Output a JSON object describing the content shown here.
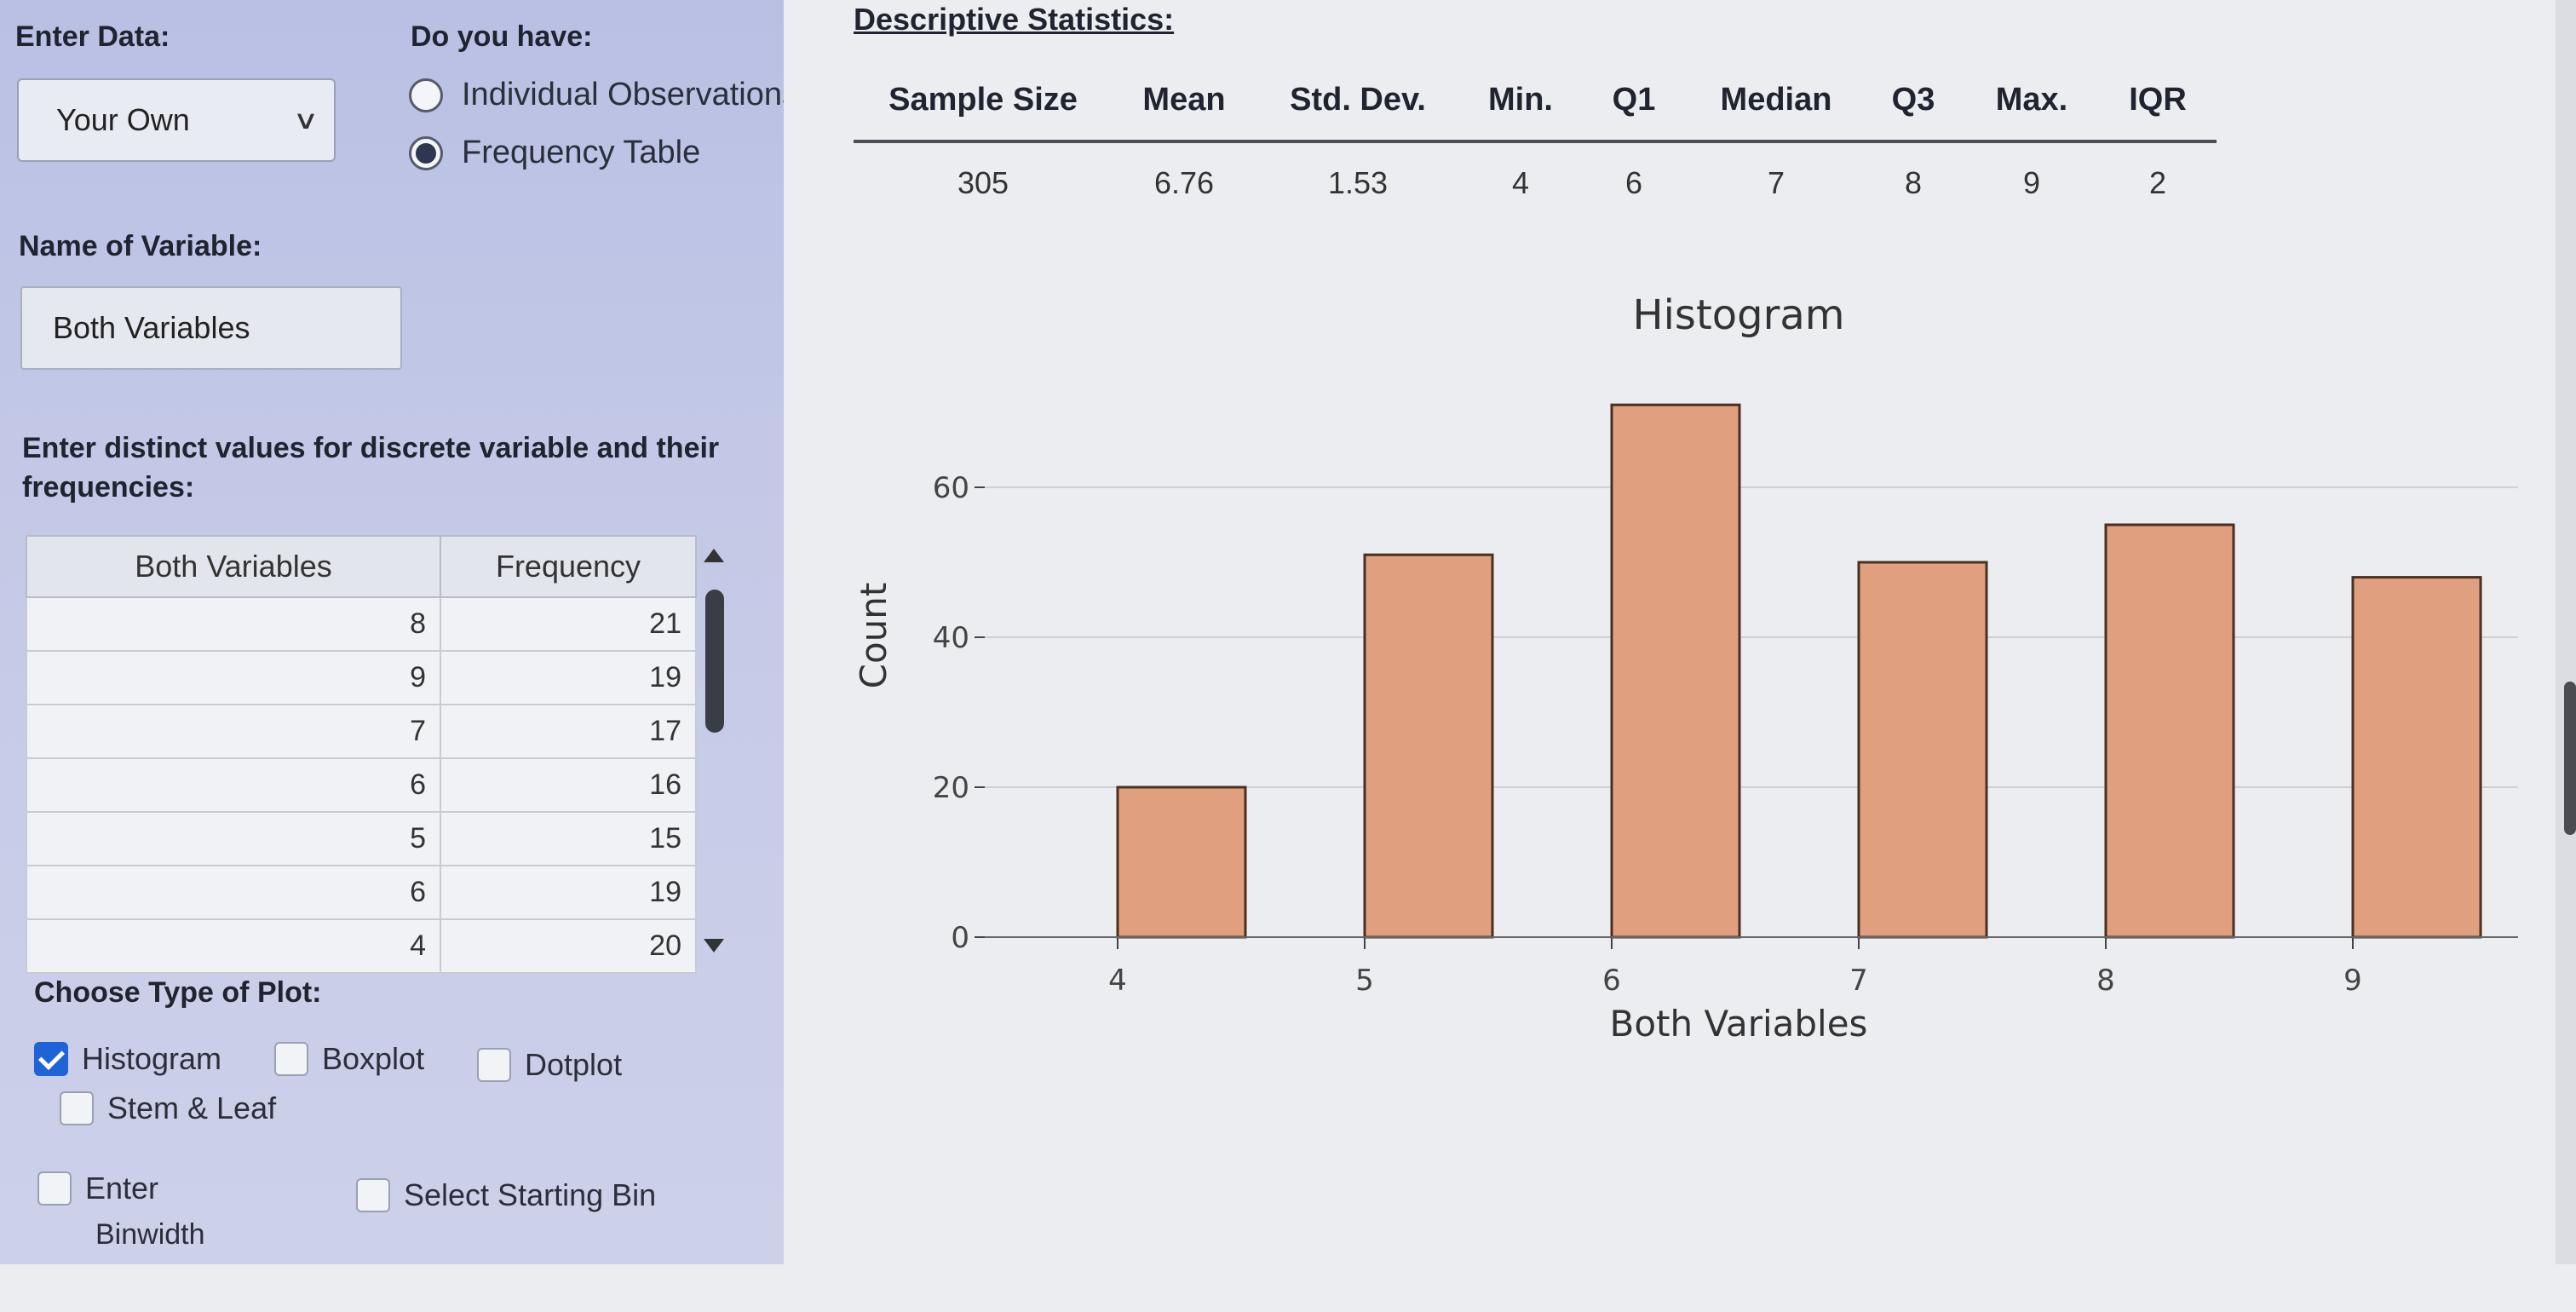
{
  "left": {
    "enter_data_label": "Enter Data:",
    "data_source": "Your Own",
    "do_you_have_label": "Do you have:",
    "radio_individual": "Individual Observations",
    "radio_frequency": "Frequency Table",
    "radio_selected": "Frequency Table",
    "name_label": "Name of Variable:",
    "variable_name": "Both Variables",
    "instructions": "Enter distinct values for discrete variable and their frequencies:",
    "table": {
      "headers": [
        "Both Variables",
        "Frequency"
      ],
      "rows": [
        [
          "8",
          "21"
        ],
        [
          "9",
          "19"
        ],
        [
          "7",
          "17"
        ],
        [
          "6",
          "16"
        ],
        [
          "5",
          "15"
        ],
        [
          "6",
          "19"
        ],
        [
          "4",
          "20"
        ]
      ]
    },
    "plot_type_label": "Choose Type of Plot:",
    "plot_options": {
      "histogram": "Histogram",
      "boxplot": "Boxplot",
      "dotplot": "Dotplot",
      "stem_leaf": "Stem & Leaf"
    },
    "histogram_checked": true,
    "enter_binwidth_line1": "Enter",
    "enter_binwidth_line2": "Binwidth",
    "select_starting_bin": "Select Starting Bin"
  },
  "stats": {
    "title": "Descriptive Statistics:",
    "headers": [
      "Sample Size",
      "Mean",
      "Std. Dev.",
      "Min.",
      "Q1",
      "Median",
      "Q3",
      "Max.",
      "IQR"
    ],
    "values": [
      "305",
      "6.76",
      "1.53",
      "4",
      "6",
      "7",
      "8",
      "9",
      "2"
    ]
  },
  "chart_data": {
    "type": "bar",
    "title": "Histogram",
    "xlabel": "Both Variables",
    "ylabel": "Count",
    "categories": [
      "4",
      "5",
      "6",
      "7",
      "8",
      "9"
    ],
    "values": [
      20,
      51,
      71,
      50,
      55,
      48
    ],
    "y_ticks": [
      0,
      20,
      40,
      60
    ],
    "ylim": [
      0,
      76
    ],
    "grid": true,
    "bar_color": "#e0a080",
    "bar_stroke": "#4a3020"
  }
}
